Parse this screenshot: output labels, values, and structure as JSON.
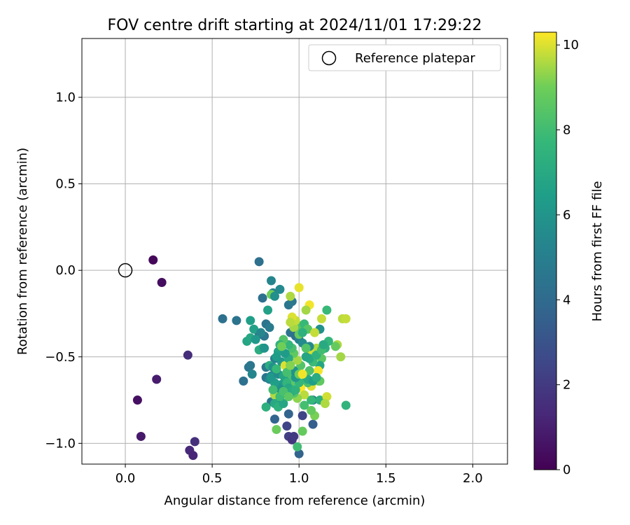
{
  "chart_data": {
    "type": "scatter",
    "title": "FOV centre drift starting at 2024/11/01 17:29:22",
    "xlabel": "Angular distance from reference (arcmin)",
    "ylabel": "Rotation from reference (arcmin)",
    "xlim": [
      -0.25,
      2.2
    ],
    "ylim": [
      -1.12,
      1.34
    ],
    "xticks": [
      0.0,
      0.5,
      1.0,
      1.5,
      2.0
    ],
    "xtick_labels": [
      "0.0",
      "0.5",
      "1.0",
      "1.5",
      "2.0"
    ],
    "yticks": [
      -1.0,
      -0.5,
      0.0,
      0.5,
      1.0
    ],
    "ytick_labels": [
      "−1.0",
      "−0.5",
      "0.0",
      "0.5",
      "1.0"
    ],
    "grid": true,
    "legend": {
      "position": "upper-right",
      "entries": [
        "Reference platepar"
      ]
    },
    "colorbar": {
      "label": "Hours from first FF file",
      "colormap": "viridis",
      "range": [
        0,
        10.3
      ],
      "ticks": [
        0,
        2,
        4,
        6,
        8,
        10
      ],
      "tick_labels": [
        "0",
        "2",
        "4",
        "6",
        "8",
        "10"
      ]
    },
    "reference_point": {
      "x": 0.0,
      "y": 0.0
    },
    "points": [
      [
        0.16,
        0.06,
        0.2
      ],
      [
        0.21,
        -0.07,
        0.4
      ],
      [
        0.36,
        -0.49,
        1.5
      ],
      [
        0.18,
        -0.63,
        0.9
      ],
      [
        0.07,
        -0.75,
        0.5
      ],
      [
        0.09,
        -0.96,
        0.8
      ],
      [
        0.37,
        -1.04,
        1.3
      ],
      [
        0.39,
        -1.07,
        1.2
      ],
      [
        0.4,
        -0.99,
        1.6
      ],
      [
        0.77,
        0.05,
        4.3
      ],
      [
        0.56,
        -0.28,
        4.3
      ],
      [
        0.64,
        -0.29,
        4.4
      ],
      [
        0.68,
        -0.64,
        4.3
      ],
      [
        0.71,
        -0.56,
        4.5
      ],
      [
        0.72,
        -0.55,
        4.6
      ],
      [
        0.79,
        -0.16,
        4.3
      ],
      [
        0.81,
        -0.31,
        4.4
      ],
      [
        0.84,
        -0.06,
        5.3
      ],
      [
        0.85,
        -0.13,
        5.2
      ],
      [
        0.89,
        -0.11,
        5.5
      ],
      [
        0.94,
        -0.2,
        4.5
      ],
      [
        0.96,
        -0.18,
        4.6
      ],
      [
        0.83,
        -0.33,
        4.8
      ],
      [
        0.8,
        -0.38,
        4.6
      ],
      [
        0.77,
        -0.37,
        4.4
      ],
      [
        0.72,
        -0.29,
        6.5
      ],
      [
        0.74,
        -0.34,
        6.6
      ],
      [
        0.7,
        -0.41,
        6.8
      ],
      [
        0.72,
        -0.39,
        6.9
      ],
      [
        0.77,
        -0.46,
        7.2
      ],
      [
        0.79,
        -0.45,
        7.0
      ],
      [
        0.73,
        -0.6,
        5.3
      ],
      [
        0.81,
        -0.56,
        4.6
      ],
      [
        0.81,
        -0.62,
        4.5
      ],
      [
        0.83,
        -0.63,
        5.4
      ],
      [
        0.84,
        -0.61,
        5.5
      ],
      [
        0.84,
        -0.76,
        4.5
      ],
      [
        0.86,
        -0.51,
        5.0
      ],
      [
        0.86,
        -0.86,
        3.8
      ],
      [
        0.89,
        -0.75,
        4.9
      ],
      [
        0.94,
        -0.83,
        3.7
      ],
      [
        0.93,
        -0.9,
        2.4
      ],
      [
        0.94,
        -0.96,
        2.2
      ],
      [
        0.96,
        -0.98,
        1.8
      ],
      [
        0.97,
        -0.96,
        2.0
      ],
      [
        1.0,
        -1.06,
        3.7
      ],
      [
        1.02,
        -0.84,
        2.4
      ],
      [
        1.08,
        -0.89,
        3.5
      ],
      [
        1.08,
        -0.75,
        4.6
      ],
      [
        0.81,
        -0.79,
        7.3
      ],
      [
        0.87,
        -0.73,
        7.8
      ],
      [
        0.86,
        -0.72,
        9.6
      ],
      [
        0.87,
        -0.92,
        8.9
      ],
      [
        0.99,
        -1.02,
        8.0
      ],
      [
        1.02,
        -0.93,
        8.8
      ],
      [
        1.09,
        -0.84,
        9.1
      ],
      [
        1.07,
        -0.81,
        8.8
      ],
      [
        1.03,
        -0.78,
        8.1
      ],
      [
        1.07,
        -0.75,
        7.7
      ],
      [
        1.12,
        -0.75,
        7.3
      ],
      [
        1.16,
        -0.73,
        9.9
      ],
      [
        1.15,
        -0.77,
        9.6
      ],
      [
        1.27,
        -0.78,
        7.5
      ],
      [
        1.24,
        -0.5,
        9.5
      ],
      [
        1.22,
        -0.43,
        9.6
      ],
      [
        1.21,
        -0.44,
        8.8
      ],
      [
        1.25,
        -0.28,
        9.7
      ],
      [
        1.27,
        -0.28,
        9.8
      ],
      [
        1.16,
        -0.23,
        7.8
      ],
      [
        1.17,
        -0.41,
        7.6
      ],
      [
        1.15,
        -0.45,
        7.3
      ],
      [
        1.12,
        -0.34,
        5.8
      ],
      [
        1.13,
        -0.28,
        9.8
      ],
      [
        1.06,
        -0.2,
        10.2
      ],
      [
        1.04,
        -0.23,
        9.5
      ],
      [
        1.0,
        -0.1,
        10.1
      ],
      [
        0.95,
        -0.15,
        9.6
      ],
      [
        1.0,
        -0.32,
        8.4
      ],
      [
        1.03,
        -0.31,
        7.8
      ],
      [
        1.05,
        -0.34,
        8.5
      ],
      [
        1.09,
        -0.36,
        9.8
      ],
      [
        1.1,
        -0.45,
        9.6
      ],
      [
        1.07,
        -0.48,
        9.9
      ],
      [
        1.06,
        -0.44,
        5.5
      ],
      [
        1.09,
        -0.5,
        9.3
      ],
      [
        1.13,
        -0.51,
        8.6
      ],
      [
        1.12,
        -0.55,
        6.8
      ],
      [
        1.11,
        -0.58,
        10.2
      ],
      [
        1.11,
        -0.64,
        9.5
      ],
      [
        1.12,
        -0.64,
        8.7
      ],
      [
        1.07,
        -0.67,
        10.0
      ],
      [
        1.05,
        -0.65,
        8.2
      ],
      [
        1.04,
        -0.62,
        7.8
      ],
      [
        1.01,
        -0.68,
        10.3
      ],
      [
        1.03,
        -0.72,
        9.7
      ],
      [
        0.99,
        -0.74,
        9.3
      ],
      [
        0.97,
        -0.71,
        8.4
      ],
      [
        0.95,
        -0.66,
        8.6
      ],
      [
        0.96,
        -0.61,
        8.2
      ],
      [
        0.99,
        -0.58,
        8.9
      ],
      [
        1.01,
        -0.55,
        8.4
      ],
      [
        0.99,
        -0.52,
        9.5
      ],
      [
        0.97,
        -0.48,
        8.7
      ],
      [
        0.96,
        -0.45,
        8.2
      ],
      [
        0.94,
        -0.43,
        7.6
      ],
      [
        0.91,
        -0.4,
        8.4
      ],
      [
        0.89,
        -0.43,
        7.4
      ],
      [
        0.88,
        -0.47,
        6.6
      ],
      [
        0.87,
        -0.5,
        6.4
      ],
      [
        0.9,
        -0.53,
        6.2
      ],
      [
        0.92,
        -0.55,
        10.0
      ],
      [
        0.93,
        -0.59,
        9.4
      ],
      [
        0.92,
        -0.64,
        7.2
      ],
      [
        0.9,
        -0.66,
        6.3
      ],
      [
        0.88,
        -0.68,
        5.8
      ],
      [
        0.86,
        -0.65,
        6.5
      ],
      [
        0.84,
        -0.62,
        6.2
      ],
      [
        0.88,
        -0.6,
        5.6
      ],
      [
        0.91,
        -0.61,
        6.8
      ],
      [
        0.93,
        -0.65,
        7.6
      ],
      [
        0.94,
        -0.68,
        6.9
      ],
      [
        0.96,
        -0.7,
        7.1
      ],
      [
        0.98,
        -0.69,
        7.4
      ],
      [
        1.0,
        -0.65,
        7.6
      ],
      [
        0.98,
        -0.62,
        6.1
      ],
      [
        0.97,
        -0.58,
        5.9
      ],
      [
        0.95,
        -0.55,
        6.7
      ],
      [
        0.94,
        -0.51,
        7.0
      ],
      [
        0.92,
        -0.48,
        6.3
      ],
      [
        0.95,
        -0.36,
        4.4
      ],
      [
        0.97,
        -0.33,
        9.5
      ],
      [
        0.98,
        -0.38,
        4.2
      ],
      [
        1.0,
        -0.4,
        5.0
      ],
      [
        1.02,
        -0.42,
        5.6
      ],
      [
        1.0,
        -0.37,
        8.8
      ],
      [
        0.98,
        -0.29,
        9.8
      ],
      [
        0.96,
        -0.27,
        10.0
      ],
      [
        0.95,
        -0.3,
        9.7
      ],
      [
        1.02,
        -0.36,
        7.3
      ],
      [
        0.82,
        -0.23,
        6.6
      ],
      [
        0.84,
        -0.14,
        9.0
      ],
      [
        0.86,
        -0.15,
        5.8
      ],
      [
        0.78,
        -0.36,
        5.4
      ],
      [
        0.8,
        -0.45,
        6.0
      ],
      [
        0.75,
        -0.4,
        6.2
      ],
      [
        0.83,
        -0.55,
        7.2
      ],
      [
        0.85,
        -0.69,
        8.0
      ],
      [
        0.86,
        -0.77,
        7.0
      ],
      [
        0.88,
        -0.79,
        7.4
      ],
      [
        0.91,
        -0.77,
        6.8
      ],
      [
        0.89,
        -0.73,
        7.9
      ],
      [
        0.91,
        -0.7,
        8.2
      ],
      [
        0.94,
        -0.73,
        8.6
      ],
      [
        1.05,
        -0.63,
        7.0
      ],
      [
        1.08,
        -0.64,
        6.5
      ],
      [
        1.1,
        -0.62,
        7.1
      ],
      [
        1.06,
        -0.58,
        8.3
      ],
      [
        1.08,
        -0.53,
        7.9
      ],
      [
        1.06,
        -0.51,
        7.0
      ],
      [
        1.04,
        -0.5,
        6.8
      ],
      [
        1.1,
        -0.49,
        7.4
      ],
      [
        1.13,
        -0.46,
        8.0
      ],
      [
        1.14,
        -0.43,
        7.0
      ],
      [
        1.04,
        -0.45,
        8.4
      ],
      [
        0.85,
        -0.56,
        5.9
      ],
      [
        0.87,
        -0.57,
        7.8
      ],
      [
        0.93,
        -0.59,
        8.1
      ],
      [
        1.0,
        -0.6,
        9.0
      ],
      [
        1.02,
        -0.6,
        10.2
      ],
      [
        0.95,
        -0.55,
        9.2
      ],
      [
        0.9,
        -0.44,
        9.0
      ]
    ]
  }
}
